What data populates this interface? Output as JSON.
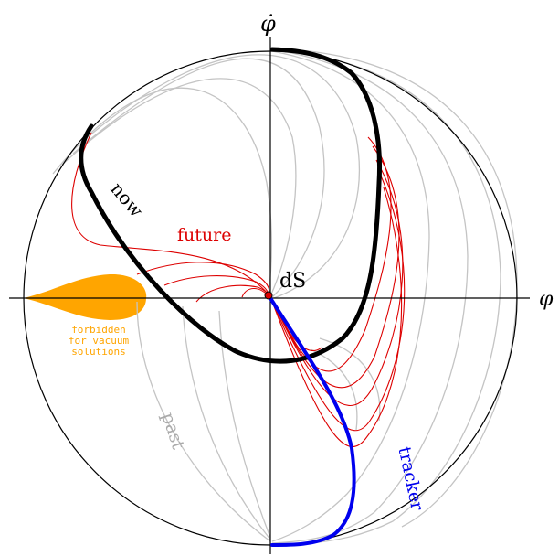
{
  "labels": {
    "y_axis": "φ̇",
    "x_axis": "φ",
    "now": "now",
    "future": "future",
    "past": "past",
    "ds": "dS",
    "tracker": "tracker",
    "forbidden": [
      "forbidden",
      "for vacuum",
      "solutions"
    ]
  },
  "colors": {
    "past": "#c4c4c4",
    "future": "#dd0000",
    "now": "#000000",
    "tracker": "#0000ee",
    "forbidden": "#ffa500",
    "axes": "#000000"
  }
}
